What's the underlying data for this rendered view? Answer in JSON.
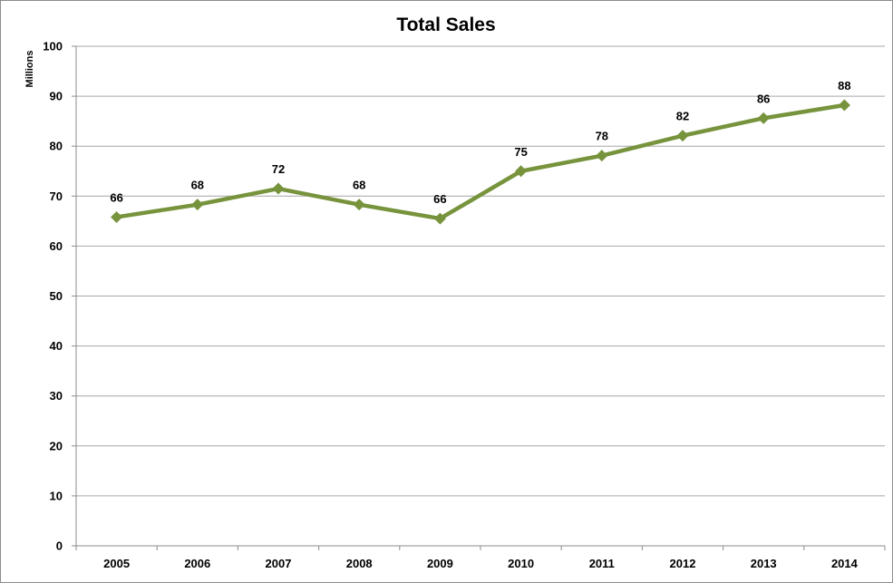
{
  "chart_data": {
    "type": "line",
    "title": "Total Sales",
    "xlabel": "",
    "ylabel": "Millions",
    "categories": [
      "2005",
      "2006",
      "2007",
      "2008",
      "2009",
      "2010",
      "2011",
      "2012",
      "2013",
      "2014"
    ],
    "series": [
      {
        "values": [
          65.8,
          68.3,
          71.5,
          68.3,
          65.5,
          75.0,
          78.1,
          82.1,
          85.6,
          88.2
        ],
        "data_labels": [
          "66",
          "68",
          "72",
          "68",
          "66",
          "75",
          "78",
          "82",
          "86",
          "88"
        ],
        "color": "#77933c"
      }
    ],
    "ylim": [
      0,
      100
    ],
    "yticks": [
      "0",
      "10",
      "20",
      "30",
      "40",
      "50",
      "60",
      "70",
      "80",
      "90",
      "100"
    ],
    "grid": true,
    "legend": "none",
    "marker": "diamond"
  }
}
